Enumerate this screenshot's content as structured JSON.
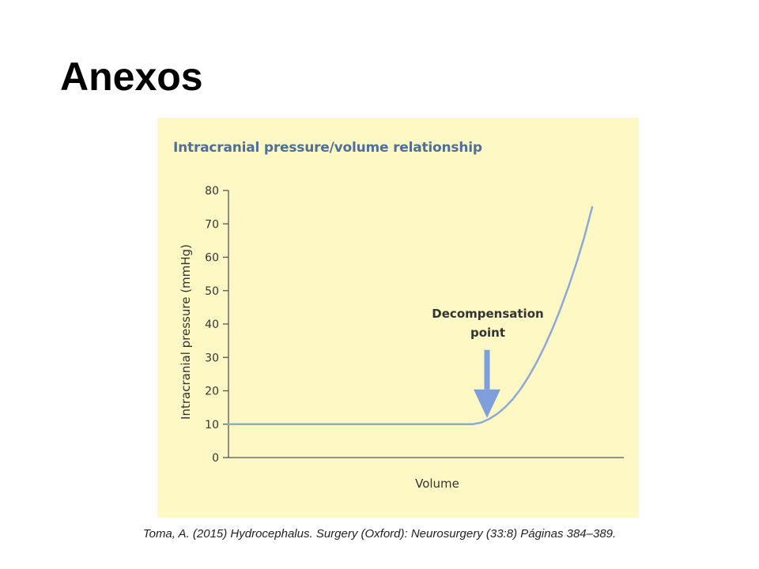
{
  "slide": {
    "title": "Anexos",
    "caption": "Toma, A. (2015) Hydrocephalus. Surgery (Oxford): Neurosurgery (33:8) Páginas 384–389."
  },
  "colors": {
    "panel_background": "#fdf8c4",
    "chart_title": "#4e6f9a",
    "curve": "#8fa9d6",
    "arrow": "#7e9fdc",
    "axis": "#555555",
    "text": "#333333"
  },
  "chart_data": {
    "type": "line",
    "title": "Intracranial pressure/volume relationship",
    "xlabel": "Volume",
    "ylabel": "Intracranial pressure (mmHg)",
    "ylim": [
      0,
      80
    ],
    "yticks": [
      0,
      10,
      20,
      30,
      40,
      50,
      60,
      70,
      80
    ],
    "xlim": [
      0,
      100
    ],
    "x_ticks_shown": false,
    "grid": false,
    "series": [
      {
        "x": [
          0,
          10,
          20,
          30,
          40,
          50,
          60,
          61.8,
          64,
          66,
          68,
          70,
          72,
          74,
          76,
          78,
          80,
          82,
          84,
          86,
          88,
          90,
          92
        ],
        "values": [
          10,
          10,
          10,
          10,
          10,
          10,
          10,
          10,
          10.5,
          11.6,
          13.1,
          15.1,
          17.6,
          20.7,
          24.4,
          28.6,
          33.4,
          38.7,
          44.6,
          51.1,
          58.2,
          66,
          75
        ]
      }
    ],
    "annotations": [
      {
        "text_lines": [
          "Decompensation",
          "point"
        ],
        "x": 61.8,
        "y": 10,
        "arrow": "down"
      }
    ]
  }
}
